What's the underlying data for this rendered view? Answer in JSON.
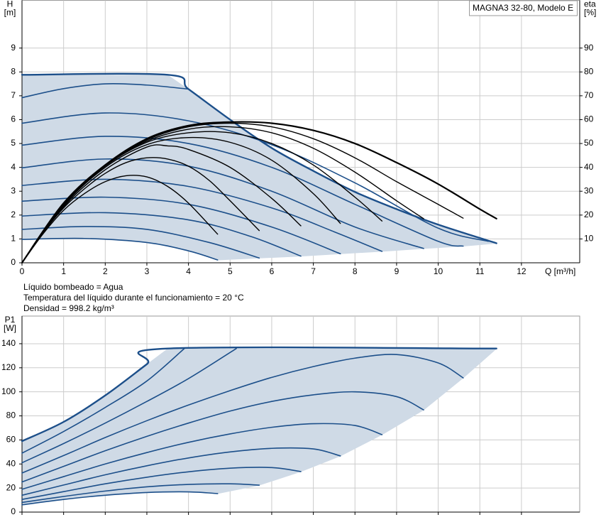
{
  "chart_data": [
    {
      "type": "line",
      "annotation": "MAGNA3 32-80, Modelo E",
      "ylabel": "H",
      "yunit": "[m]",
      "y2label": "eta",
      "y2unit": "[%]",
      "xlabel": "Q [m³/h]",
      "xlim": [
        0,
        13.4
      ],
      "xticks": [
        0,
        1,
        2,
        3,
        4,
        5,
        6,
        7,
        8,
        9,
        10,
        11,
        12
      ],
      "xtick_labels": true,
      "ylim": [
        0,
        11
      ],
      "yticks": [
        0,
        1,
        2,
        3,
        4,
        5,
        6,
        7,
        8,
        9
      ],
      "y2lim": [
        0,
        110
      ],
      "y2ticks": [
        10,
        20,
        30,
        40,
        50,
        60,
        70,
        80,
        90
      ],
      "grid": true,
      "area": {
        "color": "#cfdae6",
        "x": [
          4.7,
          5.7,
          6.7,
          7.65,
          8.65,
          9.65,
          10.6,
          11.4
        ],
        "values": [
          0.12,
          0.2,
          0.28,
          0.38,
          0.48,
          0.6,
          0.7,
          0.82
        ]
      },
      "series": [
        {
          "color": "#1c4f8a",
          "width": 2.4,
          "x": [
            0,
            3.5,
            4,
            5,
            6,
            7,
            8,
            9,
            10,
            11.4
          ],
          "values": [
            7.88,
            7.88,
            7.28,
            6.0,
            4.81,
            3.85,
            2.97,
            2.25,
            1.6,
            0.82
          ]
        },
        {
          "color": "#1c4f8a",
          "width": 1.6,
          "x": [
            0,
            1,
            2,
            3,
            4
          ],
          "values": [
            6.92,
            7.3,
            7.5,
            7.45,
            7.28
          ]
        },
        {
          "color": "#1c4f8a",
          "width": 1.6,
          "x": [
            0,
            2,
            4,
            6,
            8,
            10,
            11.2
          ],
          "values": [
            5.85,
            6.28,
            5.95,
            4.95,
            3.35,
            1.45,
            0.9
          ]
        },
        {
          "color": "#1c4f8a",
          "width": 1.6,
          "x": [
            0,
            2,
            4,
            6,
            8,
            10,
            10.6
          ],
          "values": [
            4.93,
            5.3,
            5.0,
            4.0,
            2.45,
            0.9,
            0.7
          ]
        },
        {
          "color": "#1c4f8a",
          "width": 1.6,
          "x": [
            0,
            2,
            4,
            6,
            8,
            9.65
          ],
          "values": [
            3.98,
            4.35,
            4.05,
            3.0,
            1.5,
            0.6
          ]
        },
        {
          "color": "#1c4f8a",
          "width": 1.6,
          "x": [
            0,
            2,
            4,
            6,
            7.5,
            8.65
          ],
          "values": [
            3.24,
            3.5,
            3.2,
            2.3,
            1.3,
            0.48
          ]
        },
        {
          "color": "#1c4f8a",
          "width": 1.6,
          "x": [
            0,
            2,
            4,
            6,
            7.65
          ],
          "values": [
            2.58,
            2.75,
            2.45,
            1.5,
            0.38
          ]
        },
        {
          "color": "#1c4f8a",
          "width": 1.6,
          "x": [
            0,
            2,
            4,
            5.5,
            6.7
          ],
          "values": [
            1.96,
            2.1,
            1.8,
            1.1,
            0.28
          ]
        },
        {
          "color": "#1c4f8a",
          "width": 1.6,
          "x": [
            0,
            1.5,
            3,
            4.5,
            5.7
          ],
          "values": [
            1.4,
            1.52,
            1.4,
            0.85,
            0.2
          ]
        },
        {
          "color": "#1c4f8a",
          "width": 1.6,
          "x": [
            0,
            1.5,
            3,
            4,
            4.7
          ],
          "values": [
            0.98,
            1.02,
            0.85,
            0.5,
            0.12
          ]
        },
        {
          "color": "#000000",
          "width": 1.4,
          "axis": "y2",
          "x": [
            0,
            0.5,
            1,
            1.5,
            2,
            2.5,
            3,
            3.5,
            4,
            4.7
          ],
          "values": [
            0,
            12,
            22,
            29,
            34,
            36.5,
            36,
            32,
            25,
            12
          ]
        },
        {
          "color": "#000000",
          "width": 1.4,
          "axis": "y2",
          "x": [
            0,
            0.5,
            1,
            1.5,
            2,
            2.5,
            3,
            3.5,
            4,
            4.5,
            5,
            5.7
          ],
          "values": [
            0,
            12.5,
            23,
            31,
            37.5,
            42,
            44,
            43.5,
            40.5,
            34.5,
            26,
            13.5
          ]
        },
        {
          "color": "#000000",
          "width": 1.4,
          "axis": "y2",
          "x": [
            0,
            1,
            2,
            3,
            3.5,
            4,
            5,
            6,
            6.7
          ],
          "values": [
            0,
            23.5,
            39,
            48.5,
            49,
            47.5,
            40,
            27,
            15.5
          ]
        },
        {
          "color": "#000000",
          "width": 1.4,
          "axis": "y2",
          "x": [
            0,
            1,
            2,
            3,
            4,
            5,
            6,
            7,
            7.65
          ],
          "values": [
            0,
            24,
            40,
            49.5,
            52.5,
            50.5,
            43,
            29,
            16.5
          ]
        },
        {
          "color": "#000000",
          "width": 1.4,
          "axis": "y2",
          "x": [
            0,
            1,
            2,
            3,
            4,
            5,
            6,
            7,
            8,
            8.65
          ],
          "values": [
            0,
            24.5,
            40.5,
            50.5,
            54.5,
            54.5,
            50,
            41,
            27.5,
            17.5
          ]
        },
        {
          "color": "#000000",
          "width": 1.4,
          "axis": "y2",
          "x": [
            0,
            1,
            2,
            3,
            4,
            5,
            6,
            7,
            8,
            9,
            9.65
          ],
          "values": [
            0,
            25,
            41,
            51,
            56,
            57,
            54.5,
            48,
            38,
            26,
            18.5
          ]
        },
        {
          "color": "#000000",
          "width": 1.4,
          "axis": "y2",
          "x": [
            0,
            1,
            2,
            3,
            4,
            5,
            6,
            7,
            8,
            9,
            10,
            10.6
          ],
          "values": [
            0,
            25,
            41,
            51.5,
            57,
            58.5,
            57,
            52,
            44,
            34,
            24.5,
            18.7
          ]
        },
        {
          "color": "#000000",
          "width": 2.2,
          "axis": "y2",
          "x": [
            0,
            1,
            2,
            3,
            4,
            5,
            6,
            7,
            8,
            9,
            10,
            11,
            11.4
          ],
          "values": [
            0,
            25,
            41,
            52,
            57.5,
            59,
            58.5,
            55.5,
            50,
            42,
            33,
            22.5,
            18.5
          ]
        }
      ]
    },
    {
      "type": "line",
      "ylabel": "P1",
      "yunit": "[W]",
      "xlim": [
        0,
        13.4
      ],
      "xticks": [
        0,
        1,
        2,
        3,
        4,
        5,
        6,
        7,
        8,
        9,
        10,
        11,
        12
      ],
      "xtick_labels": false,
      "ylim": [
        0,
        163
      ],
      "yticks": [
        0,
        20,
        40,
        60,
        80,
        100,
        120,
        140
      ],
      "grid": true,
      "area": {
        "color": "#cfdae6",
        "x": [
          4.7,
          5.7,
          6.7,
          7.65,
          8.65,
          9.65,
          10.6,
          11.4
        ],
        "values": [
          15.4,
          22.4,
          33.7,
          46.7,
          64.4,
          85,
          111.6,
          136
        ]
      },
      "series": [
        {
          "color": "#1c4f8a",
          "width": 2.4,
          "x": [
            0,
            1,
            2,
            3,
            3.5,
            11.4
          ],
          "values": [
            59,
            75,
            97,
            123,
            136,
            136
          ]
        },
        {
          "color": "#1c4f8a",
          "width": 1.6,
          "x": [
            0,
            1,
            2,
            3,
            3.9
          ],
          "values": [
            49,
            67,
            87,
            109,
            136
          ]
        },
        {
          "color": "#1c4f8a",
          "width": 1.6,
          "x": [
            0,
            1,
            2,
            3,
            4,
            5.15
          ],
          "values": [
            41,
            57,
            74,
            92,
            111,
            136
          ]
        },
        {
          "color": "#1c4f8a",
          "width": 1.6,
          "x": [
            0,
            1,
            2,
            3,
            4,
            5,
            6,
            7,
            8,
            9,
            10,
            10.6
          ],
          "values": [
            32.5,
            47,
            62,
            76,
            89,
            101,
            112,
            121,
            128,
            131,
            124,
            111.6
          ]
        },
        {
          "color": "#1c4f8a",
          "width": 1.6,
          "x": [
            0,
            1,
            2,
            3,
            4,
            5,
            6,
            7,
            8,
            9,
            9.65
          ],
          "values": [
            25,
            38,
            51,
            63,
            74,
            84,
            92,
            97.5,
            100,
            96,
            85
          ]
        },
        {
          "color": "#1c4f8a",
          "width": 1.6,
          "x": [
            0,
            1,
            2,
            3,
            4,
            5,
            6,
            7,
            8,
            8.65
          ],
          "values": [
            19,
            29.5,
            40,
            49.5,
            58,
            65,
            70.5,
            73.5,
            72,
            64.4
          ]
        },
        {
          "color": "#1c4f8a",
          "width": 1.6,
          "x": [
            0,
            1,
            2,
            3,
            4,
            5,
            6,
            7,
            7.65
          ],
          "values": [
            14,
            22.5,
            31,
            38.5,
            45,
            50,
            53,
            52.5,
            46.7
          ]
        },
        {
          "color": "#1c4f8a",
          "width": 1.6,
          "x": [
            0,
            1,
            2,
            3,
            4,
            5,
            6,
            6.7
          ],
          "values": [
            10.5,
            17,
            23.5,
            29,
            33.5,
            36.5,
            37,
            33.7
          ]
        },
        {
          "color": "#1c4f8a",
          "width": 1.6,
          "x": [
            0,
            1,
            2,
            3,
            4,
            5,
            5.7
          ],
          "values": [
            8,
            13,
            17.5,
            21,
            23,
            23.5,
            22.4
          ]
        },
        {
          "color": "#1c4f8a",
          "width": 1.6,
          "x": [
            0,
            1,
            2,
            3,
            4,
            4.7
          ],
          "values": [
            6,
            10.5,
            14,
            16.3,
            16.8,
            15.4
          ]
        }
      ]
    }
  ],
  "notes": [
    "Líquido bombeado = Agua",
    "Temperatura del líquido durante el funcionamiento = 20 °C",
    "Densidad = 998.2 kg/m³"
  ]
}
